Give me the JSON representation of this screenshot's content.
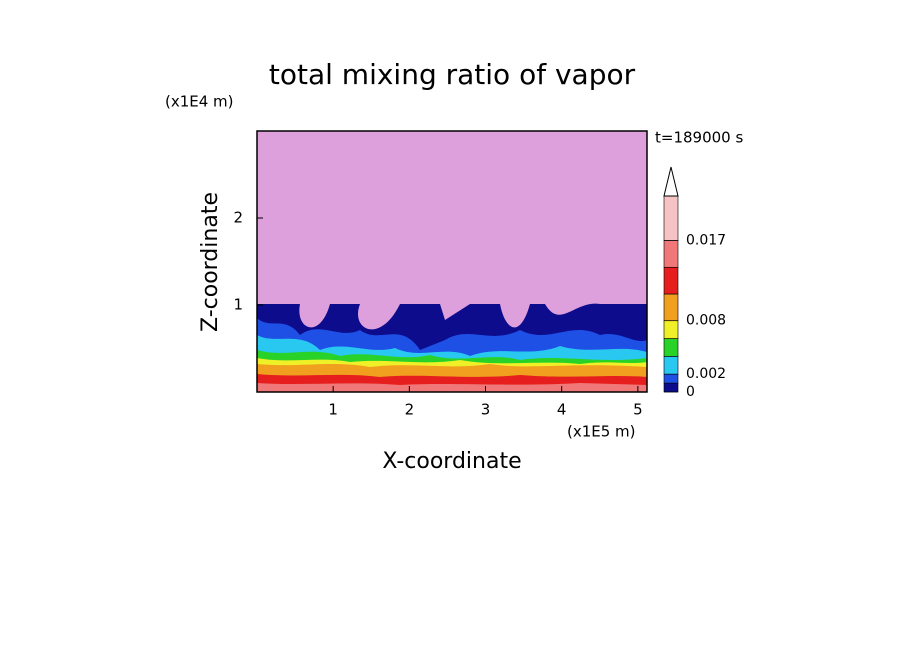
{
  "chart_data": {
    "type": "contour",
    "title": "total mixing ratio of vapor",
    "x_label": "X-coordinate",
    "y_label": "Z-coordinate",
    "x_unit": "(x1E5 m)",
    "y_unit": "(x1E4 m)",
    "time_label": "t=189000 s",
    "xlim": [
      0,
      5.12
    ],
    "xticks": [
      1,
      2,
      3,
      4,
      5
    ],
    "ylim": [
      0,
      3
    ],
    "yticks": [
      1,
      2
    ],
    "background_color": "#dda0dd",
    "colorbar": {
      "lim": [
        0,
        0.022
      ],
      "bounds": [
        0,
        0.001,
        0.002,
        0.004,
        0.006,
        0.008,
        0.011,
        0.014,
        0.017,
        0.022
      ],
      "colors": [
        "#0c0c8c",
        "#1e50e6",
        "#28c8f0",
        "#28d228",
        "#f0f028",
        "#f0a01e",
        "#e61e1e",
        "#f07878",
        "#f5c3c3"
      ],
      "ticks": [
        0,
        0.002,
        0.008,
        0.017
      ]
    }
  }
}
